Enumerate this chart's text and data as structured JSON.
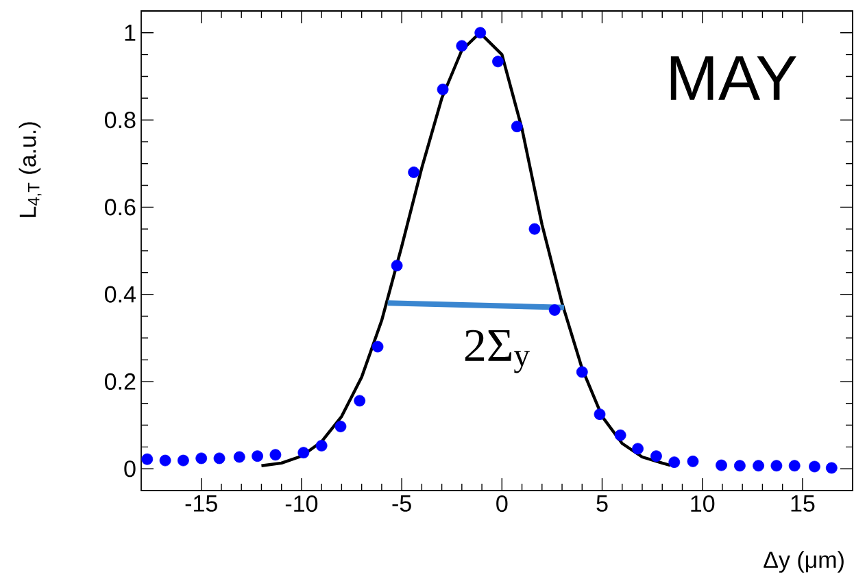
{
  "chart_data": {
    "type": "scatter",
    "xlabel": "Δy (μm)",
    "ylabel": "L$_{4,T}$ (a.u.)",
    "xlim": [
      -18,
      17.5
    ],
    "ylim": [
      -0.05,
      1.05
    ],
    "xticks": [
      -15,
      -10,
      -5,
      0,
      5,
      10,
      15
    ],
    "yticks": [
      0,
      0.2,
      0.4,
      0.6,
      0.8,
      1
    ],
    "grid": false,
    "series": [
      {
        "marker": "circle",
        "color": "#0000ff",
        "x": [
          -17.7,
          -16.8,
          -15.9,
          -15.0,
          -14.1,
          -13.1,
          -12.2,
          -11.3,
          -9.9,
          -9.0,
          -8.05,
          -7.1,
          -6.2,
          -5.24,
          -4.4,
          -2.95,
          -2.0,
          -1.08,
          -0.2,
          0.75,
          1.63,
          2.63,
          4.0,
          4.88,
          5.91,
          6.78,
          7.7,
          8.6,
          9.53,
          10.95,
          11.87,
          12.8,
          13.7,
          14.6,
          15.6,
          16.45
        ],
        "values": [
          0.022,
          0.019,
          0.019,
          0.024,
          0.024,
          0.027,
          0.029,
          0.032,
          0.037,
          0.053,
          0.097,
          0.156,
          0.28,
          0.466,
          0.68,
          0.87,
          0.97,
          1.0,
          0.934,
          0.785,
          0.55,
          0.364,
          0.222,
          0.125,
          0.077,
          0.046,
          0.029,
          0.015,
          0.017,
          0.008,
          0.007,
          0.007,
          0.007,
          0.007,
          0.005,
          0.002
        ]
      },
      {
        "type": "line",
        "marker": "none",
        "color": "#000000",
        "x": [
          -12,
          -11,
          -10,
          -9,
          -8,
          -7,
          -6,
          -5,
          -4,
          -3,
          -2,
          -1.1,
          0,
          1,
          2,
          3,
          4,
          5,
          6,
          7,
          8,
          8.4
        ],
        "values": [
          0.007,
          0.013,
          0.029,
          0.062,
          0.12,
          0.21,
          0.34,
          0.51,
          0.69,
          0.85,
          0.96,
          1.0,
          0.95,
          0.78,
          0.56,
          0.38,
          0.23,
          0.12,
          0.058,
          0.027,
          0.013,
          0.008
        ]
      },
      {
        "type": "line",
        "marker": "none",
        "color": "#3a86d0",
        "x": [
          -5.7,
          3.1
        ],
        "values": [
          0.38,
          0.37
        ]
      }
    ],
    "annotations": [
      "2Σ$_{y}$",
      "MAY"
    ]
  }
}
